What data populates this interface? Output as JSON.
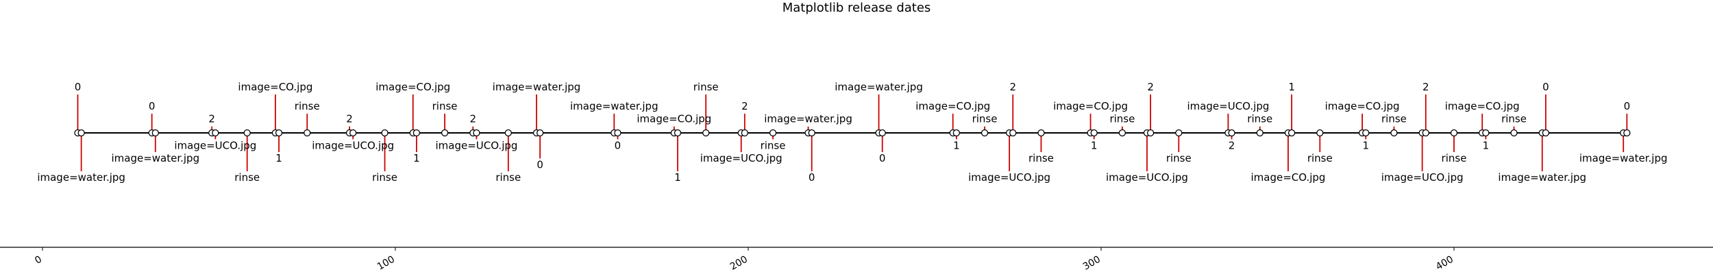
{
  "chart_data": {
    "type": "timeline",
    "title": "Matplotlib release dates",
    "xlim": [
      0,
      470
    ],
    "xticks": [
      0,
      100,
      200,
      300,
      400
    ],
    "stem_color": "#cc0000",
    "events": [
      {
        "x": 10,
        "l": 6,
        "label": "0"
      },
      {
        "x": 11,
        "l": -6,
        "label": "image=water.jpg"
      },
      {
        "x": 31,
        "l": 3,
        "label": "0"
      },
      {
        "x": 32,
        "l": -3,
        "label": "image=water.jpg"
      },
      {
        "x": 48,
        "l": 1,
        "label": "2"
      },
      {
        "x": 49,
        "l": -1,
        "label": "image=UCO.jpg"
      },
      {
        "x": 58,
        "l": -6,
        "label": "rinse"
      },
      {
        "x": 66,
        "l": 6,
        "label": "image=CO.jpg"
      },
      {
        "x": 67,
        "l": -3,
        "label": "1"
      },
      {
        "x": 75,
        "l": 3,
        "label": "rinse"
      },
      {
        "x": 87,
        "l": 1,
        "label": "2"
      },
      {
        "x": 88,
        "l": -1,
        "label": "image=UCO.jpg"
      },
      {
        "x": 97,
        "l": -6,
        "label": "rinse"
      },
      {
        "x": 105,
        "l": 6,
        "label": "image=CO.jpg"
      },
      {
        "x": 106,
        "l": -3,
        "label": "1"
      },
      {
        "x": 114,
        "l": 3,
        "label": "rinse"
      },
      {
        "x": 122,
        "l": 1,
        "label": "2"
      },
      {
        "x": 123,
        "l": -1,
        "label": "image=UCO.jpg"
      },
      {
        "x": 132,
        "l": -6,
        "label": "rinse"
      },
      {
        "x": 140,
        "l": 6,
        "label": "image=water.jpg"
      },
      {
        "x": 141,
        "l": -4,
        "label": "0"
      },
      {
        "x": 162,
        "l": 3,
        "label": "image=water.jpg"
      },
      {
        "x": 163,
        "l": -1,
        "label": "0"
      },
      {
        "x": 179,
        "l": 1,
        "label": "image=CO.jpg"
      },
      {
        "x": 180,
        "l": -6,
        "label": "1"
      },
      {
        "x": 188,
        "l": 6,
        "label": "rinse"
      },
      {
        "x": 198,
        "l": -3,
        "label": "image=UCO.jpg"
      },
      {
        "x": 199,
        "l": 3,
        "label": "2"
      },
      {
        "x": 207,
        "l": -1,
        "label": "rinse"
      },
      {
        "x": 217,
        "l": 1,
        "label": "image=water.jpg"
      },
      {
        "x": 218,
        "l": -6,
        "label": "0"
      },
      {
        "x": 237,
        "l": 6,
        "label": "image=water.jpg"
      },
      {
        "x": 238,
        "l": -3,
        "label": "0"
      },
      {
        "x": 258,
        "l": 3,
        "label": "image=CO.jpg"
      },
      {
        "x": 259,
        "l": -1,
        "label": "1"
      },
      {
        "x": 267,
        "l": 1,
        "label": "rinse"
      },
      {
        "x": 274,
        "l": -6,
        "label": "image=UCO.jpg"
      },
      {
        "x": 275,
        "l": 6,
        "label": "2"
      },
      {
        "x": 283,
        "l": -3,
        "label": "rinse"
      },
      {
        "x": 297,
        "l": 3,
        "label": "image=CO.jpg"
      },
      {
        "x": 298,
        "l": -1,
        "label": "1"
      },
      {
        "x": 306,
        "l": 1,
        "label": "rinse"
      },
      {
        "x": 313,
        "l": -6,
        "label": "image=UCO.jpg"
      },
      {
        "x": 314,
        "l": 6,
        "label": "2"
      },
      {
        "x": 322,
        "l": -3,
        "label": "rinse"
      },
      {
        "x": 336,
        "l": 3,
        "label": "image=UCO.jpg"
      },
      {
        "x": 337,
        "l": -1,
        "label": "2"
      },
      {
        "x": 345,
        "l": 1,
        "label": "rinse"
      },
      {
        "x": 353,
        "l": -6,
        "label": "image=CO.jpg"
      },
      {
        "x": 354,
        "l": 6,
        "label": "1"
      },
      {
        "x": 362,
        "l": -3,
        "label": "rinse"
      },
      {
        "x": 374,
        "l": 3,
        "label": "image=CO.jpg"
      },
      {
        "x": 375,
        "l": -1,
        "label": "1"
      },
      {
        "x": 383,
        "l": 1,
        "label": "rinse"
      },
      {
        "x": 391,
        "l": -6,
        "label": "image=UCO.jpg"
      },
      {
        "x": 392,
        "l": 6,
        "label": "2"
      },
      {
        "x": 400,
        "l": -3,
        "label": "rinse"
      },
      {
        "x": 408,
        "l": 3,
        "label": "image=CO.jpg"
      },
      {
        "x": 409,
        "l": -1,
        "label": "1"
      },
      {
        "x": 417,
        "l": 1,
        "label": "rinse"
      },
      {
        "x": 425,
        "l": -6,
        "label": "image=water.jpg"
      },
      {
        "x": 426,
        "l": 6,
        "label": "0"
      },
      {
        "x": 448,
        "l": -3,
        "label": "image=water.jpg"
      },
      {
        "x": 449,
        "l": 3,
        "label": "0"
      }
    ]
  }
}
